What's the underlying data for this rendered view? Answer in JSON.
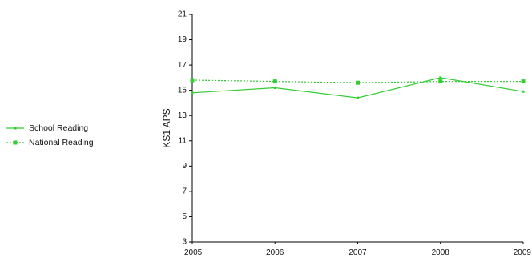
{
  "chart_data": {
    "type": "line",
    "title": "",
    "xlabel": "",
    "ylabel": "KS1 APS",
    "categories": [
      "2005",
      "2006",
      "2007",
      "2008",
      "2009"
    ],
    "ylim": [
      3,
      21
    ],
    "yticks": [
      3,
      5,
      7,
      9,
      11,
      13,
      15,
      17,
      19,
      21
    ],
    "grid": false,
    "legend_position": "left",
    "series": [
      {
        "name": "School Reading",
        "values": [
          14.8,
          15.2,
          14.4,
          16.0,
          14.9
        ],
        "color": "#33cc33",
        "line_style": "solid",
        "marker": "small-square"
      },
      {
        "name": "National Reading",
        "values": [
          15.8,
          15.7,
          15.6,
          15.7,
          15.7
        ],
        "color": "#33cc33",
        "line_style": "dotted",
        "marker": "square"
      }
    ]
  }
}
